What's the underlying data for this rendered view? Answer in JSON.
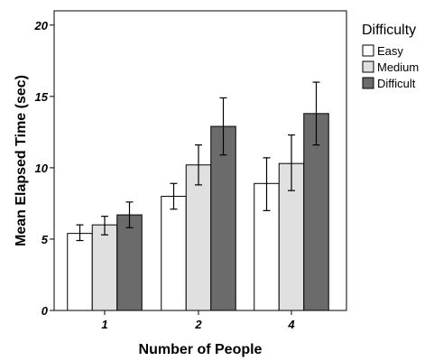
{
  "chart_data": {
    "type": "bar",
    "xlabel": "Number of People",
    "ylabel": "Mean Elapsed Time (sec)",
    "ylim": [
      0,
      21
    ],
    "yticks": [
      0,
      5,
      10,
      15,
      20
    ],
    "categories": [
      "1",
      "2",
      "4"
    ],
    "legend": {
      "title": "Difficulty",
      "position": "right"
    },
    "grid": false,
    "series": [
      {
        "name": "Easy",
        "color": "#ffffff",
        "values": [
          5.4,
          8.0,
          8.9
        ],
        "error_low": [
          4.9,
          7.1,
          7.0
        ],
        "error_high": [
          6.0,
          8.9,
          10.7
        ]
      },
      {
        "name": "Medium",
        "color": "#e0e0e0",
        "values": [
          6.0,
          10.2,
          10.3
        ],
        "error_low": [
          5.3,
          8.8,
          8.4
        ],
        "error_high": [
          6.6,
          11.6,
          12.3
        ]
      },
      {
        "name": "Difficult",
        "color": "#6b6b6b",
        "values": [
          6.7,
          12.9,
          13.8
        ],
        "error_low": [
          5.8,
          10.9,
          11.6
        ],
        "error_high": [
          7.6,
          14.9,
          16.0
        ]
      }
    ]
  }
}
